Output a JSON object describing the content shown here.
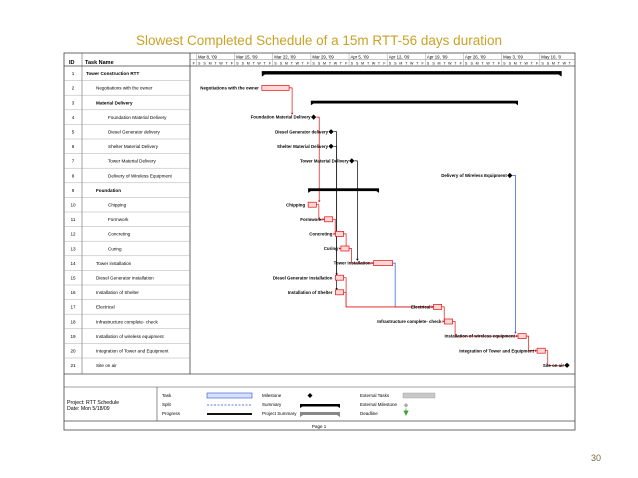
{
  "slide_title": "Slowest Completed Schedule of a 15m RTT-56 days duration",
  "page_number": "30",
  "gantt": {
    "headers": {
      "id": "ID",
      "name": "Task Name"
    },
    "weeks": [
      "Mar 8, '09",
      "Mar 15, '09",
      "Mar 22, '09",
      "Mar 29, '09",
      "Apr 5, '09",
      "Apr 12, '09",
      "Apr 19, '09",
      "Apr 26, '09",
      "May 3, '09",
      "May 10, '0"
    ],
    "day_letters": "FSSMTWTFSSMTWTFSSMTWTFSSMTWTFSSMTWTFSSMTWTFSSMTWTFSSMTWTFSSMTWTFSSMTWT",
    "tasks": [
      {
        "id": "1",
        "name": "Tower Construction RTT",
        "chart_label": ""
      },
      {
        "id": "2",
        "name": "Negotiations with the owner",
        "chart_label": "Negotiations with the owner"
      },
      {
        "id": "3",
        "name": "Material Delivery",
        "chart_label": ""
      },
      {
        "id": "4",
        "name": "Foundation Material Delivery",
        "chart_label": "Foundation Material Delivery"
      },
      {
        "id": "5",
        "name": "Diesel Generator delivery",
        "chart_label": "Diesel Generator delivery"
      },
      {
        "id": "6",
        "name": "Shelter Material Delivery",
        "chart_label": "Shelter Material Delivery"
      },
      {
        "id": "7",
        "name": "Tower Material Delivery",
        "chart_label": "Tower Material Delivery"
      },
      {
        "id": "8",
        "name": "Delivery of Wireless Equipment",
        "chart_label": "Delivery of Wireless Equipment"
      },
      {
        "id": "9",
        "name": "Foundation",
        "chart_label": ""
      },
      {
        "id": "10",
        "name": "Chipping",
        "chart_label": "Chipping"
      },
      {
        "id": "11",
        "name": "Formwork",
        "chart_label": "Formwork"
      },
      {
        "id": "12",
        "name": "Concreting",
        "chart_label": "Concreting"
      },
      {
        "id": "13",
        "name": "Curing",
        "chart_label": "Curing"
      },
      {
        "id": "14",
        "name": "Tower installation",
        "chart_label": "Tower installation"
      },
      {
        "id": "15",
        "name": "Diesel Generator installation",
        "chart_label": "Diesel Generator installation"
      },
      {
        "id": "16",
        "name": "Installation of Shelter",
        "chart_label": "Installation of Shelter"
      },
      {
        "id": "17",
        "name": "Electrical",
        "chart_label": "Electrical"
      },
      {
        "id": "18",
        "name": "Infrastructure complete- check",
        "chart_label": "Infrastructure complete- check"
      },
      {
        "id": "19",
        "name": "Installation of wireless equipment",
        "chart_label": "Installation of wireless equipment"
      },
      {
        "id": "20",
        "name": "Integration of Tower and Equipment",
        "chart_label": "Integration of Tower and Equipment"
      },
      {
        "id": "21",
        "name": "Site on air",
        "chart_label": "Site on air"
      }
    ],
    "legend": {
      "project": "Project: RTT Schedule",
      "date": "Date: Mon 5/18/09",
      "col1": [
        "Task",
        "Split",
        "Progress"
      ],
      "col2": [
        "Milestone",
        "Summary",
        "Project Summary"
      ],
      "col3": [
        "External Tasks",
        "External Milestone",
        "Deadline"
      ]
    },
    "footer_page": "Page 1"
  }
}
